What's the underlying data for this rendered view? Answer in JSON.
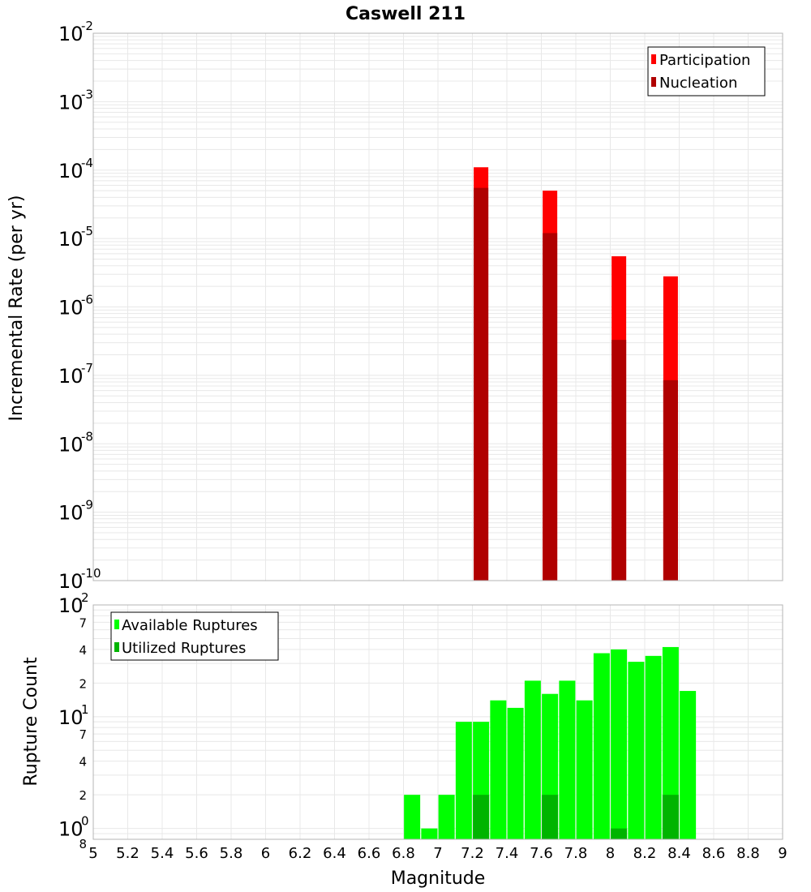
{
  "title": "Caswell 211",
  "colors": {
    "participation": "#ff0000",
    "nucleation": "#b00000",
    "available": "#00ff00",
    "utilized": "#00b400",
    "grid": "#e8e8e8",
    "border": "#b4b4b4"
  },
  "chart_data": [
    {
      "type": "bar",
      "name": "rates",
      "ylabel": "Incremental Rate (per yr)",
      "xlabel": "",
      "yscale": "log",
      "xlim": [
        5,
        9
      ],
      "ylim": [
        1e-10,
        0.01
      ],
      "grid": true,
      "legend_position": "top-right",
      "y_ticks": [
        {
          "base": "10",
          "exp": "-10"
        },
        {
          "base": "10",
          "exp": "-9"
        },
        {
          "base": "10",
          "exp": "-8"
        },
        {
          "base": "10",
          "exp": "-7"
        },
        {
          "base": "10",
          "exp": "-6"
        },
        {
          "base": "10",
          "exp": "-5"
        },
        {
          "base": "10",
          "exp": "-4"
        },
        {
          "base": "10",
          "exp": "-3"
        },
        {
          "base": "10",
          "exp": "-2"
        }
      ],
      "series": [
        {
          "name": "Participation",
          "color": "#ff0000",
          "points": [
            {
              "x": 7.25,
              "y": 0.00011
            },
            {
              "x": 7.65,
              "y": 5e-05
            },
            {
              "x": 8.05,
              "y": 5.5e-06
            },
            {
              "x": 8.35,
              "y": 2.8e-06
            }
          ]
        },
        {
          "name": "Nucleation",
          "color": "#b00000",
          "points": [
            {
              "x": 7.25,
              "y": 5.5e-05
            },
            {
              "x": 7.65,
              "y": 1.2e-05
            },
            {
              "x": 8.05,
              "y": 3.3e-07
            },
            {
              "x": 8.35,
              "y": 8.5e-08
            }
          ]
        }
      ]
    },
    {
      "type": "bar",
      "name": "counts",
      "ylabel": "Rupture Count",
      "xlabel": "Magnitude",
      "yscale": "log",
      "xlim": [
        5,
        9
      ],
      "ylim": [
        0.8,
        100
      ],
      "grid": true,
      "legend_position": "top-left",
      "x_ticks": [
        "5",
        "5.2",
        "5.4",
        "5.6",
        "5.8",
        "6",
        "6.2",
        "6.4",
        "6.6",
        "6.8",
        "7",
        "7.2",
        "7.4",
        "7.6",
        "7.8",
        "8",
        "8.2",
        "8.4",
        "8.6",
        "8.8",
        "9"
      ],
      "y_major_ticks": [
        {
          "base": "10",
          "exp": "0"
        },
        {
          "base": "10",
          "exp": "1"
        },
        {
          "base": "10",
          "exp": "2"
        }
      ],
      "y_minor_ticks": [
        "8",
        "2",
        "4",
        "7",
        "2",
        "4",
        "7"
      ],
      "series": [
        {
          "name": "Available Ruptures",
          "color": "#00ff00",
          "points": [
            {
              "x": 6.85,
              "y": 2
            },
            {
              "x": 6.95,
              "y": 1
            },
            {
              "x": 7.05,
              "y": 2
            },
            {
              "x": 7.15,
              "y": 9
            },
            {
              "x": 7.25,
              "y": 9
            },
            {
              "x": 7.35,
              "y": 14
            },
            {
              "x": 7.45,
              "y": 12
            },
            {
              "x": 7.55,
              "y": 21
            },
            {
              "x": 7.65,
              "y": 16
            },
            {
              "x": 7.75,
              "y": 21
            },
            {
              "x": 7.85,
              "y": 14
            },
            {
              "x": 7.95,
              "y": 37
            },
            {
              "x": 8.05,
              "y": 40
            },
            {
              "x": 8.15,
              "y": 31
            },
            {
              "x": 8.25,
              "y": 35
            },
            {
              "x": 8.35,
              "y": 42
            },
            {
              "x": 8.45,
              "y": 17
            }
          ]
        },
        {
          "name": "Utilized Ruptures",
          "color": "#00b400",
          "points": [
            {
              "x": 7.25,
              "y": 2
            },
            {
              "x": 7.65,
              "y": 2
            },
            {
              "x": 8.05,
              "y": 1
            },
            {
              "x": 8.35,
              "y": 2
            }
          ]
        }
      ]
    }
  ]
}
